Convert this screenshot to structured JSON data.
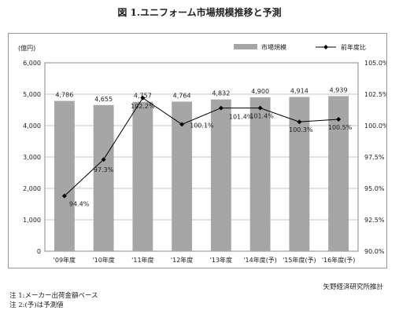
{
  "title": "図 1.ユニフォーム市場規模推移と予測",
  "chart_data": {
    "type": "bar",
    "categories": [
      "'09年度",
      "'10年度",
      "'11年度",
      "'12年度",
      "'13年度",
      "'14年度(予)",
      "'15年度(予)",
      "'16年度(予)"
    ],
    "series": [
      {
        "name": "市場規模",
        "type": "bar",
        "axis": "left",
        "values": [
          4786,
          4655,
          4757,
          4764,
          4832,
          4900,
          4914,
          4939
        ],
        "labels": [
          "4,786",
          "4,655",
          "4,757",
          "4,764",
          "4,832",
          "4,900",
          "4,914",
          "4,939"
        ],
        "color": "#a6a6a6"
      },
      {
        "name": "前年度比",
        "type": "line",
        "axis": "right",
        "values": [
          94.4,
          97.3,
          102.2,
          100.1,
          101.4,
          101.4,
          100.3,
          100.5
        ],
        "labels": [
          "94.4%",
          "97.3%",
          "102.2%",
          "100.1%",
          "101.4%",
          "101.4%",
          "100.3%",
          "100.5%"
        ],
        "color": "#000000"
      }
    ],
    "y_left": {
      "unit_label": "(億円)",
      "ylim": [
        0,
        6000
      ],
      "ticks": [
        0,
        1000,
        2000,
        3000,
        4000,
        5000,
        6000
      ],
      "tick_labels": [
        "0",
        "1,000",
        "2,000",
        "3,000",
        "4,000",
        "5,000",
        "6,000"
      ]
    },
    "y_right": {
      "ylim": [
        90,
        105
      ],
      "ticks": [
        90,
        92.5,
        95,
        97.5,
        100,
        102.5,
        105
      ],
      "tick_labels": [
        "90.0%",
        "92.5%",
        "95.0%",
        "97.5%",
        "100.0%",
        "102.5%",
        "105.0%"
      ]
    },
    "legend": {
      "placement": "top-right",
      "items": [
        "市場規模",
        "前年度比"
      ]
    },
    "grid": true
  },
  "source": "矢野経済研究所推計",
  "notes": [
    "注 1:メーカー出荷金額ベース",
    "注 2:(予)は予測値"
  ]
}
